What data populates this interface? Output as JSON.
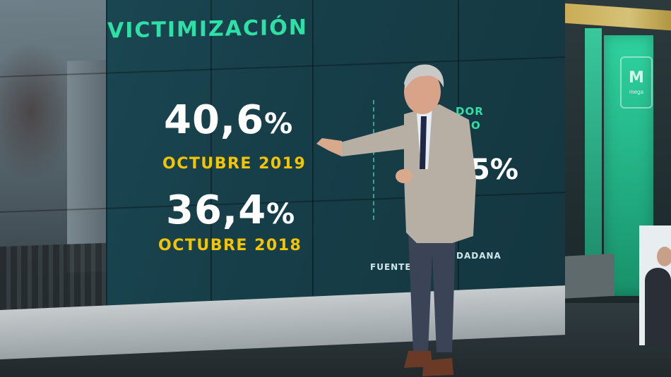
{
  "graphic": {
    "title": "VICTIMIZACIÓN",
    "stat_2019": {
      "value": "40,6",
      "unit": "%",
      "label": "OCTUBRE 2019"
    },
    "stat_2018": {
      "value": "36,4",
      "unit": "%",
      "label": "OCTUBRE 2018"
    },
    "right_heading_line1": "DOR",
    "right_heading_line2": "O",
    "right_value": "5%",
    "source_prefix": "FUENTE:",
    "source_suffix": "DADANA"
  },
  "channel": {
    "logo_text": "mega"
  },
  "colors": {
    "title": "#2fe0a6",
    "numbers": "#ffffff",
    "captions": "#f4c400",
    "wall": "#17404b",
    "studio_green": "#1fa57b"
  }
}
